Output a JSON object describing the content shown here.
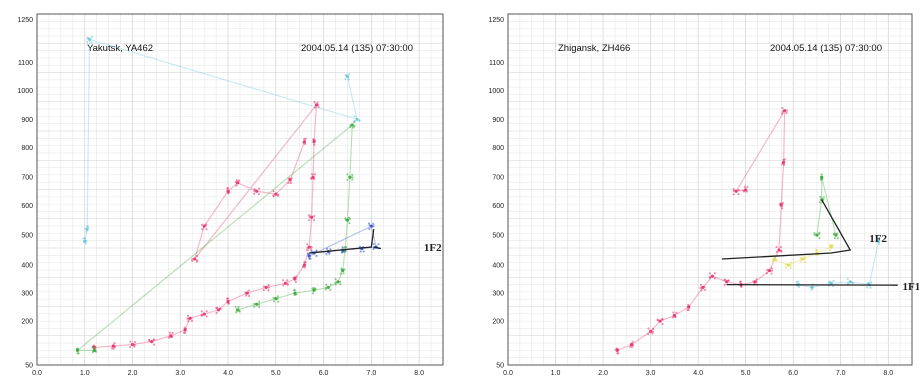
{
  "chart_data": [
    {
      "type": "scatter",
      "station": "Yakutsk, YA462",
      "datetime": "2004.05.14 (135) 07:30:00",
      "xlim": [
        0.0,
        8.5
      ],
      "ylim": [
        50,
        1250
      ],
      "grid": true,
      "x_tick_labels": [
        "0.0",
        "1.0",
        "2.0",
        "3.0",
        "4.0",
        "5.0",
        "6.0",
        "7.0",
        "8.0"
      ],
      "y_tick_labels": [
        "50",
        "200",
        "300",
        "400",
        "500",
        "600",
        "700",
        "800",
        "900",
        "1000",
        "1100",
        "1250"
      ],
      "annotations": [
        {
          "text": "1F2",
          "x": 8.1,
          "y": 460
        }
      ],
      "series": [
        {
          "color": "#e8336b",
          "points": [
            [
              1.2,
              110
            ],
            [
              1.6,
              115
            ],
            [
              2.0,
              120
            ],
            [
              2.4,
              130
            ],
            [
              2.8,
              150
            ],
            [
              3.1,
              170
            ],
            [
              3.2,
              210
            ],
            [
              3.5,
              225
            ],
            [
              3.8,
              240
            ],
            [
              4.0,
              270
            ],
            [
              4.4,
              300
            ],
            [
              4.8,
              320
            ],
            [
              5.2,
              335
            ],
            [
              5.4,
              350
            ],
            [
              5.6,
              400
            ],
            [
              5.7,
              460
            ],
            [
              5.75,
              560
            ],
            [
              5.78,
              700
            ],
            [
              5.8,
              820
            ],
            [
              5.85,
              950
            ],
            [
              3.3,
              420
            ],
            [
              3.5,
              530
            ],
            [
              4.0,
              650
            ],
            [
              4.2,
              680
            ],
            [
              4.6,
              650
            ],
            [
              5.0,
              640
            ],
            [
              5.3,
              690
            ],
            [
              5.6,
              820
            ]
          ]
        },
        {
          "color": "#3aa83a",
          "points": [
            [
              4.2,
              240
            ],
            [
              4.6,
              260
            ],
            [
              5.0,
              280
            ],
            [
              5.4,
              300
            ],
            [
              5.8,
              310
            ],
            [
              6.1,
              320
            ],
            [
              6.3,
              340
            ],
            [
              6.4,
              380
            ],
            [
              6.45,
              450
            ],
            [
              6.5,
              550
            ],
            [
              6.55,
              700
            ],
            [
              6.6,
              880
            ],
            [
              0.85,
              100
            ],
            [
              1.2,
              100
            ]
          ]
        },
        {
          "color": "#3355cc",
          "points": [
            [
              5.8,
              440
            ],
            [
              6.1,
              445
            ],
            [
              6.4,
              450
            ],
            [
              6.8,
              455
            ],
            [
              7.1,
              460
            ],
            [
              7.0,
              530
            ],
            [
              5.7,
              430
            ]
          ]
        },
        {
          "color": "#6cc6d6",
          "points": [
            [
              1.0,
              480
            ],
            [
              1.05,
              520
            ],
            [
              1.1,
              1180
            ],
            [
              6.7,
              900
            ],
            [
              6.5,
              1050
            ]
          ]
        }
      ]
    },
    {
      "type": "scatter",
      "station": "Zhigansk, ZH466",
      "datetime": "2004.05.14 (135) 07:30:00",
      "xlim": [
        0.0,
        8.5
      ],
      "ylim": [
        50,
        1250
      ],
      "grid": true,
      "x_tick_labels": [
        "0.0",
        "1.0",
        "2.0",
        "3.0",
        "4.0",
        "5.0",
        "6.0",
        "7.0",
        "8.0"
      ],
      "y_tick_labels": [
        "50",
        "200",
        "300",
        "400",
        "500",
        "600",
        "700",
        "800",
        "900",
        "1000",
        "1100",
        "1250"
      ],
      "annotations": [
        {
          "text": "1F2",
          "x": 7.6,
          "y": 490
        },
        {
          "text": "1F1",
          "x": 8.3,
          "y": 325
        }
      ],
      "series": [
        {
          "color": "#e8336b",
          "points": [
            [
              2.3,
              100
            ],
            [
              2.6,
              120
            ],
            [
              3.0,
              165
            ],
            [
              3.2,
              200
            ],
            [
              3.5,
              220
            ],
            [
              3.8,
              250
            ],
            [
              4.1,
              320
            ],
            [
              4.3,
              360
            ],
            [
              4.6,
              340
            ],
            [
              4.9,
              330
            ],
            [
              5.2,
              340
            ],
            [
              5.5,
              380
            ],
            [
              5.7,
              450
            ],
            [
              5.75,
              600
            ],
            [
              5.8,
              750
            ],
            [
              5.82,
              930
            ],
            [
              4.8,
              650
            ],
            [
              5.0,
              655
            ]
          ]
        },
        {
          "color": "#e0d84a",
          "points": [
            [
              5.6,
              420
            ],
            [
              5.9,
              400
            ],
            [
              6.2,
              420
            ],
            [
              6.5,
              440
            ],
            [
              6.8,
              460
            ]
          ]
        },
        {
          "color": "#3aa83a",
          "points": [
            [
              6.5,
              500
            ],
            [
              6.6,
              620
            ],
            [
              6.6,
              700
            ],
            [
              6.9,
              500
            ]
          ]
        },
        {
          "color": "#6cc6d6",
          "points": [
            [
              6.1,
              330
            ],
            [
              6.4,
              320
            ],
            [
              6.8,
              335
            ],
            [
              7.2,
              340
            ],
            [
              7.6,
              330
            ],
            [
              7.8,
              480
            ]
          ]
        }
      ]
    }
  ]
}
